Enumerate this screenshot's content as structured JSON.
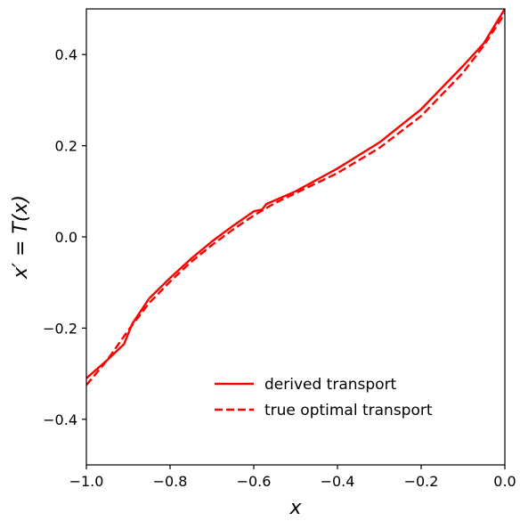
{
  "chart_data": {
    "type": "line",
    "title": "",
    "xlabel": "x",
    "ylabel": "x′ = T(x)",
    "xlim": [
      -1.0,
      0.0
    ],
    "ylim": [
      -0.5,
      0.5
    ],
    "xticks": [
      -1.0,
      -0.8,
      -0.6,
      -0.4,
      -0.2,
      0.0
    ],
    "xtick_labels": [
      "−1.0",
      "−0.8",
      "−0.6",
      "−0.4",
      "−0.2",
      "0.0"
    ],
    "yticks": [
      -0.4,
      -0.2,
      0.0,
      0.2,
      0.4
    ],
    "ytick_labels": [
      "−0.4",
      "−0.2",
      "0.0",
      "0.2",
      "0.4"
    ],
    "grid": false,
    "legend_position": "lower-right",
    "color": "#ff0000",
    "series": [
      {
        "name": "derived transport",
        "style": "solid",
        "x": [
          -1.0,
          -0.95,
          -0.91,
          -0.89,
          -0.85,
          -0.8,
          -0.75,
          -0.7,
          -0.65,
          -0.6,
          -0.58,
          -0.57,
          -0.5,
          -0.4,
          -0.3,
          -0.2,
          -0.1,
          -0.05,
          0.0
        ],
        "y": [
          -0.31,
          -0.27,
          -0.235,
          -0.19,
          -0.135,
          -0.09,
          -0.048,
          -0.01,
          0.024,
          0.056,
          0.06,
          0.072,
          0.1,
          0.15,
          0.207,
          0.28,
          0.375,
          0.425,
          0.5
        ]
      },
      {
        "name": "true optimal transport",
        "style": "dashed",
        "x": [
          -1.0,
          -0.95,
          -0.9,
          -0.85,
          -0.8,
          -0.75,
          -0.7,
          -0.65,
          -0.6,
          -0.55,
          -0.5,
          -0.4,
          -0.3,
          -0.2,
          -0.1,
          -0.05,
          0.0
        ],
        "y": [
          -0.325,
          -0.27,
          -0.205,
          -0.145,
          -0.098,
          -0.055,
          -0.018,
          0.016,
          0.047,
          0.074,
          0.096,
          0.14,
          0.195,
          0.265,
          0.36,
          0.42,
          0.49
        ]
      }
    ]
  }
}
